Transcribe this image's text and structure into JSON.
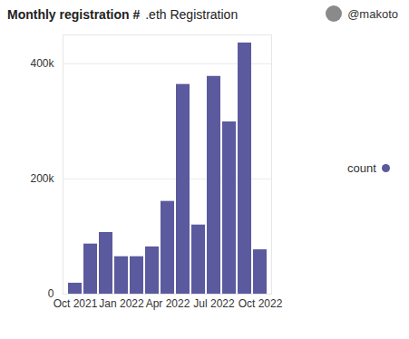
{
  "chart_data": {
    "type": "bar",
    "title": "Monthly registration #",
    "subtitle": ".eth Registration",
    "author": "@makoto",
    "categories": [
      "Oct 2021",
      null,
      null,
      "Jan 2022",
      null,
      null,
      "Apr 2022",
      null,
      null,
      "Jul 2022",
      null,
      null,
      "Oct 2022"
    ],
    "series": [
      {
        "name": "count",
        "color": "#5b5a9e",
        "values": [
          19000,
          87000,
          107000,
          65000,
          65000,
          82000,
          161000,
          364000,
          120000,
          378000,
          299000,
          436000,
          77000
        ]
      }
    ],
    "ylim": [
      0,
      450000
    ],
    "yticks": [
      0,
      {
        "value": 200000,
        "label": "200k"
      },
      {
        "value": 400000,
        "label": "400k"
      }
    ],
    "grid": true,
    "legend": "right"
  }
}
